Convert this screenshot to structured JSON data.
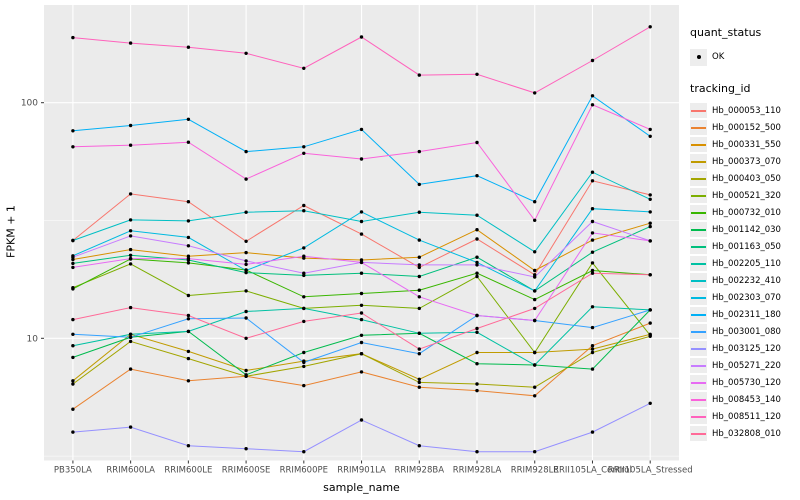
{
  "figure": {
    "legend": {
      "quant_title": "quant_status",
      "quant_items": [
        {
          "label": "OK",
          "marker": "black-point"
        }
      ],
      "tracking_title": "tracking_id"
    }
  },
  "chart_data": {
    "type": "line",
    "title": "",
    "xlabel": "sample_name",
    "ylabel": "FPKM + 1",
    "x_type": "categorical",
    "y_scale": "log10",
    "ylim": [
      3.0,
      260
    ],
    "y_major_ticks": [
      10,
      100
    ],
    "y_tick_labels": [
      "10",
      "100"
    ],
    "y_minor_gridlines": [
      3.162,
      31.623
    ],
    "grid": true,
    "legend_position": "right",
    "panel_bg": "#EBEBEB",
    "grid_color": "#FFFFFF",
    "tick_label_color": "#4D4D4D",
    "point_color": "#000000",
    "categories": [
      "PB350LA",
      "RRIM600LA",
      "RRIM600LE",
      "RRIM600SE",
      "RRIM600PE",
      "RRIM901LA",
      "RRIM928BA",
      "RRIM928LA",
      "RRIM928LE",
      "RRII105LA_Control",
      "RRII105LA_Stressed"
    ],
    "series": [
      {
        "name": "Hb_000053_110",
        "color": "#F8766D",
        "values": [
          26,
          41,
          38,
          25.8,
          36.6,
          27.7,
          20,
          26.4,
          18.6,
          46.6,
          40.6
        ]
      },
      {
        "name": "Hb_000152_500",
        "color": "#EA8331",
        "values": [
          5.0,
          7.4,
          6.6,
          6.9,
          6.3,
          7.2,
          6.2,
          6.0,
          5.7,
          9.3,
          11.6
        ]
      },
      {
        "name": "Hb_000331_550",
        "color": "#D89000",
        "values": [
          21.6,
          23.8,
          22.3,
          23.1,
          21.9,
          21.5,
          22.1,
          28.9,
          19.4,
          26.1,
          30.8
        ]
      },
      {
        "name": "Hb_000373_070",
        "color": "#C09B00",
        "values": [
          6.6,
          10.4,
          8.8,
          7.3,
          8.0,
          8.6,
          6.7,
          8.7,
          8.7,
          9.0,
          10.4
        ]
      },
      {
        "name": "Hb_000403_050",
        "color": "#A3A500",
        "values": [
          6.4,
          9.7,
          8.2,
          6.9,
          7.6,
          8.6,
          6.5,
          6.4,
          6.2,
          8.7,
          10.2
        ]
      },
      {
        "name": "Hb_000521_320",
        "color": "#7CAE00",
        "values": [
          16.4,
          20.7,
          15.2,
          15.9,
          13.4,
          13.8,
          13.4,
          18.3,
          8.7,
          20.9,
          10.3
        ]
      },
      {
        "name": "Hb_000732_010",
        "color": "#39B600",
        "values": [
          16.2,
          21.7,
          20.9,
          19.5,
          15.0,
          15.5,
          16.0,
          18.9,
          14.6,
          19.4,
          18.6
        ]
      },
      {
        "name": "Hb_001142_030",
        "color": "#00BB4E",
        "values": [
          8.3,
          10.1,
          10.7,
          7.0,
          8.7,
          10.3,
          10.5,
          7.8,
          7.7,
          7.4,
          13.2
        ]
      },
      {
        "name": "Hb_001163_050",
        "color": "#00BF7D",
        "values": [
          20.8,
          22.5,
          21.5,
          19.0,
          18.5,
          18.9,
          18.3,
          22.1,
          15.9,
          23.2,
          29.8
        ]
      },
      {
        "name": "Hb_002205_110",
        "color": "#00C1A3",
        "values": [
          9.3,
          10.4,
          10.7,
          13.0,
          13.4,
          12.0,
          10.5,
          10.6,
          7.7,
          13.6,
          13.2
        ]
      },
      {
        "name": "Hb_002232_410",
        "color": "#00BFC4",
        "values": [
          26,
          31.8,
          31.5,
          34.3,
          34.8,
          31.3,
          34.3,
          33.3,
          23.3,
          50.7,
          38.9
        ]
      },
      {
        "name": "Hb_002303_070",
        "color": "#00BAE0",
        "values": [
          22.4,
          28.6,
          26.8,
          19.4,
          24.2,
          34.4,
          26.1,
          21.0,
          15.9,
          35.5,
          34.4
        ]
      },
      {
        "name": "Hb_002311_180",
        "color": "#00B0F6",
        "values": [
          76,
          80,
          85,
          62,
          65,
          77,
          45,
          49,
          38,
          107,
          72
        ]
      },
      {
        "name": "Hb_003001_080",
        "color": "#35A2FF",
        "values": [
          10.4,
          10.1,
          12.1,
          12.2,
          7.9,
          9.6,
          8.6,
          12.5,
          11.9,
          11.1,
          13.2
        ]
      },
      {
        "name": "Hb_003125_120",
        "color": "#9590FF",
        "values": [
          4.0,
          4.2,
          3.5,
          3.4,
          3.3,
          4.5,
          3.5,
          3.3,
          3.3,
          4.0,
          5.3
        ]
      },
      {
        "name": "Hb_005271_220",
        "color": "#C77CFF",
        "values": [
          22.1,
          27.2,
          24.7,
          21.3,
          18.9,
          21.0,
          20.5,
          20.5,
          18.2,
          31.3,
          25.9
        ]
      },
      {
        "name": "Hb_005730_120",
        "color": "#E76BF3",
        "values": [
          20.0,
          21.8,
          21.8,
          20.6,
          22.3,
          21.0,
          15.0,
          12.5,
          11.9,
          28.0,
          25.9
        ]
      },
      {
        "name": "Hb_008453_140",
        "color": "#FA62DB",
        "values": [
          65,
          66,
          68,
          47.4,
          61,
          57.7,
          62,
          67.8,
          31.7,
          98,
          77
        ]
      },
      {
        "name": "Hb_008511_120",
        "color": "#FF62BC",
        "values": [
          189,
          179,
          172,
          162,
          140,
          190,
          131,
          132,
          110,
          151,
          210
        ]
      },
      {
        "name": "Hb_032808_010",
        "color": "#FF6A98",
        "values": [
          12.0,
          13.5,
          12.5,
          10.0,
          11.8,
          12.8,
          9.0,
          11.0,
          13.4,
          18.9,
          18.6
        ]
      }
    ]
  }
}
